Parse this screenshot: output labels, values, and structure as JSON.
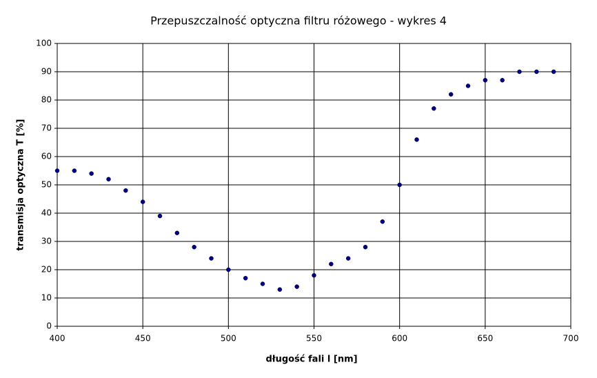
{
  "chart_data": {
    "type": "scatter",
    "title": "Przepuszczalność optyczna filtru różowego - wykres 4",
    "x_label": "długość fali l [nm]",
    "y_label": "transmisja optyczna T [%]",
    "x": [
      400,
      410,
      420,
      430,
      440,
      450,
      460,
      470,
      480,
      490,
      500,
      510,
      520,
      530,
      540,
      550,
      560,
      570,
      580,
      590,
      600,
      610,
      620,
      630,
      640,
      650,
      660,
      670,
      680,
      690
    ],
    "values": [
      55,
      55,
      54,
      52,
      48,
      44,
      39,
      33,
      28,
      24,
      20,
      17,
      15,
      13,
      14,
      18,
      22,
      24,
      28,
      37,
      50,
      66,
      77,
      82,
      85,
      87,
      87,
      90,
      90,
      90
    ],
    "color": "#000080",
    "xlim": [
      400,
      700
    ],
    "xticks": [
      400,
      450,
      500,
      550,
      600,
      650,
      700
    ],
    "ylim": [
      0,
      100
    ],
    "yticks": [
      0,
      10,
      20,
      30,
      40,
      50,
      60,
      70,
      80,
      90,
      100
    ],
    "grid": true
  }
}
